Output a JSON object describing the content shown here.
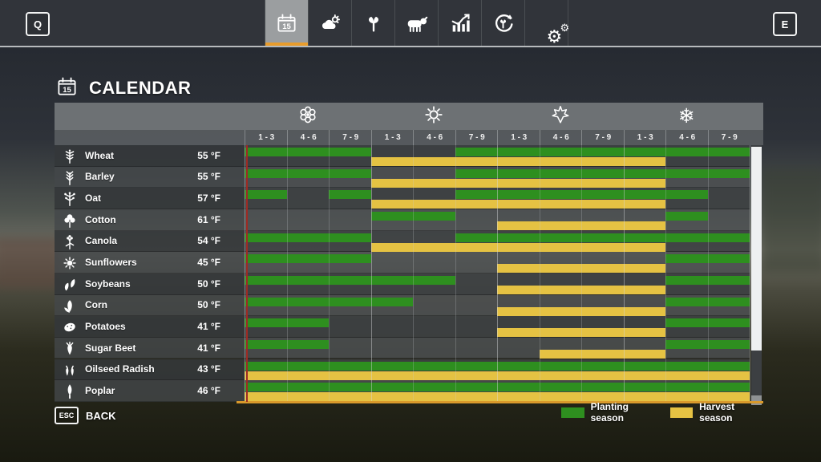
{
  "top_bar": {
    "left_key": "Q",
    "right_key": "E",
    "tabs": [
      {
        "name": "calendar",
        "icon": "calendar-icon",
        "active": true
      },
      {
        "name": "weather",
        "icon": "weather-icon",
        "active": false
      },
      {
        "name": "crops",
        "icon": "sprout-icon",
        "active": false
      },
      {
        "name": "animals",
        "icon": "cow-icon",
        "active": false
      },
      {
        "name": "statistics",
        "icon": "chart-icon",
        "active": false
      },
      {
        "name": "production",
        "icon": "cycle-icon",
        "active": false
      },
      {
        "name": "settings",
        "icon": "gear-icon",
        "active": false
      }
    ]
  },
  "page": {
    "title": "CALENDAR",
    "title_icon": "calendar-icon"
  },
  "calendar": {
    "seasons": [
      {
        "name": "spring",
        "icon": "flower-icon"
      },
      {
        "name": "summer",
        "icon": "sun-icon"
      },
      {
        "name": "autumn",
        "icon": "leaf-icon"
      },
      {
        "name": "winter",
        "icon": "snowflake-icon"
      }
    ],
    "period_labels": [
      "1 - 3",
      "4 - 6",
      "7 - 9"
    ],
    "columns_total": 12,
    "crops": [
      {
        "name": "Wheat",
        "temp": "55 °F",
        "icon": "wheat-icon",
        "plant": [
          [
            1,
            3
          ],
          [
            6,
            12
          ]
        ],
        "harvest": [
          [
            4,
            10
          ]
        ]
      },
      {
        "name": "Barley",
        "temp": "55 °F",
        "icon": "barley-icon",
        "plant": [
          [
            1,
            3
          ],
          [
            6,
            12
          ]
        ],
        "harvest": [
          [
            4,
            10
          ]
        ]
      },
      {
        "name": "Oat",
        "temp": "57 °F",
        "icon": "oat-icon",
        "plant": [
          [
            1,
            1
          ],
          [
            3,
            3
          ],
          [
            6,
            11
          ]
        ],
        "harvest": [
          [
            4,
            10
          ]
        ]
      },
      {
        "name": "Cotton",
        "temp": "61 °F",
        "icon": "cotton-icon",
        "plant": [
          [
            4,
            5
          ],
          [
            11,
            11
          ]
        ],
        "harvest": [
          [
            7,
            10
          ]
        ]
      },
      {
        "name": "Canola",
        "temp": "54 °F",
        "icon": "canola-icon",
        "plant": [
          [
            1,
            3
          ],
          [
            6,
            12
          ]
        ],
        "harvest": [
          [
            4,
            10
          ]
        ]
      },
      {
        "name": "Sunflowers",
        "temp": "45 °F",
        "icon": "sunflower-icon",
        "plant": [
          [
            1,
            3
          ],
          [
            11,
            12
          ]
        ],
        "harvest": [
          [
            7,
            10
          ]
        ]
      },
      {
        "name": "Soybeans",
        "temp": "50 °F",
        "icon": "soybean-icon",
        "plant": [
          [
            1,
            5
          ],
          [
            11,
            12
          ]
        ],
        "harvest": [
          [
            7,
            10
          ]
        ]
      },
      {
        "name": "Corn",
        "temp": "50 °F",
        "icon": "corn-icon",
        "plant": [
          [
            1,
            4
          ],
          [
            11,
            12
          ]
        ],
        "harvest": [
          [
            7,
            10
          ]
        ]
      },
      {
        "name": "Potatoes",
        "temp": "41 °F",
        "icon": "potato-icon",
        "plant": [
          [
            1,
            2
          ],
          [
            11,
            12
          ]
        ],
        "harvest": [
          [
            7,
            10
          ]
        ]
      },
      {
        "name": "Sugar Beet",
        "temp": "41 °F",
        "icon": "sugarbeet-icon",
        "plant": [
          [
            1,
            2
          ],
          [
            11,
            12
          ]
        ],
        "harvest": [
          [
            8,
            10
          ]
        ]
      },
      {
        "name": "Oilseed Radish",
        "temp": "43 °F",
        "icon": "radish-icon",
        "plant": [
          [
            1,
            12
          ]
        ],
        "harvest": [
          [
            1,
            12
          ]
        ]
      },
      {
        "name": "Poplar",
        "temp": "46 °F",
        "icon": "poplar-icon",
        "plant": [
          [
            1,
            12
          ]
        ],
        "harvest": [
          [
            1,
            12
          ]
        ]
      }
    ],
    "colors": {
      "planting": "#2e8f1f",
      "harvest": "#e5c243",
      "current_day_line": "#9e2b25",
      "active_tab_underline": "#e89c2c",
      "table_bottom_line": "#d9992b"
    },
    "legend": [
      {
        "label": "Planting season",
        "color": "planting"
      },
      {
        "label": "Harvest season",
        "color": "harvest"
      }
    ]
  },
  "footer": {
    "key": "ESC",
    "label": "BACK"
  }
}
